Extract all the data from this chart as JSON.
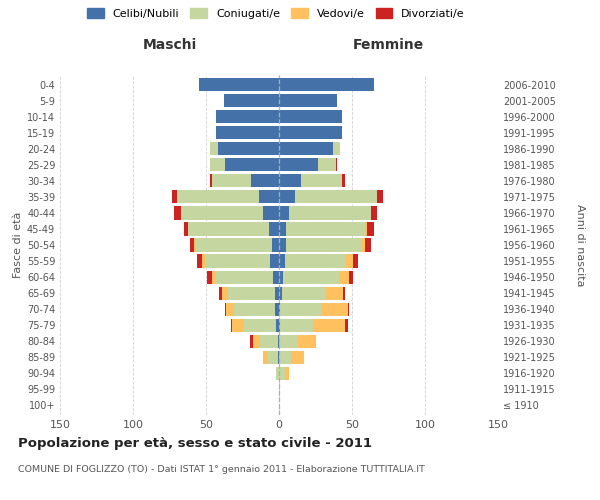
{
  "age_groups": [
    "100+",
    "95-99",
    "90-94",
    "85-89",
    "80-84",
    "75-79",
    "70-74",
    "65-69",
    "60-64",
    "55-59",
    "50-54",
    "45-49",
    "40-44",
    "35-39",
    "30-34",
    "25-29",
    "20-24",
    "15-19",
    "10-14",
    "5-9",
    "0-4"
  ],
  "birth_years": [
    "≤ 1910",
    "1911-1915",
    "1916-1920",
    "1921-1925",
    "1926-1930",
    "1931-1935",
    "1936-1940",
    "1941-1945",
    "1946-1950",
    "1951-1955",
    "1956-1960",
    "1961-1965",
    "1966-1970",
    "1971-1975",
    "1976-1980",
    "1981-1985",
    "1986-1990",
    "1991-1995",
    "1996-2000",
    "2001-2005",
    "2006-2010"
  ],
  "male": {
    "celibi": [
      0,
      0,
      0,
      1,
      1,
      2,
      3,
      3,
      4,
      6,
      5,
      7,
      11,
      14,
      19,
      37,
      42,
      43,
      43,
      38,
      55
    ],
    "coniugati": [
      0,
      0,
      2,
      7,
      12,
      22,
      28,
      32,
      40,
      45,
      52,
      55,
      56,
      56,
      27,
      10,
      5,
      0,
      0,
      0,
      0
    ],
    "vedovi": [
      0,
      0,
      0,
      3,
      5,
      8,
      5,
      4,
      2,
      2,
      1,
      0,
      0,
      0,
      0,
      0,
      0,
      0,
      0,
      0,
      0
    ],
    "divorziati": [
      0,
      0,
      0,
      0,
      2,
      1,
      1,
      2,
      3,
      3,
      3,
      3,
      5,
      3,
      1,
      0,
      0,
      0,
      0,
      0,
      0
    ]
  },
  "female": {
    "nubili": [
      0,
      0,
      0,
      0,
      0,
      1,
      1,
      2,
      3,
      4,
      5,
      5,
      7,
      11,
      15,
      27,
      37,
      43,
      43,
      40,
      65
    ],
    "coniugate": [
      0,
      1,
      4,
      8,
      13,
      22,
      28,
      30,
      38,
      42,
      52,
      54,
      56,
      56,
      28,
      12,
      5,
      0,
      0,
      0,
      0
    ],
    "vedove": [
      0,
      0,
      3,
      9,
      12,
      22,
      18,
      12,
      7,
      5,
      2,
      1,
      0,
      0,
      0,
      0,
      0,
      0,
      0,
      0,
      0
    ],
    "divorziate": [
      0,
      0,
      0,
      0,
      0,
      2,
      1,
      1,
      3,
      3,
      4,
      5,
      4,
      4,
      2,
      1,
      0,
      0,
      0,
      0,
      0
    ]
  },
  "colors": {
    "celibi": "#4472a8",
    "coniugati": "#c5d6a0",
    "vedovi": "#ffc060",
    "divorziati": "#cc2222"
  },
  "xlim": 150,
  "title": "Popolazione per età, sesso e stato civile - 2011",
  "subtitle": "COMUNE DI FOGLIZZO (TO) - Dati ISTAT 1° gennaio 2011 - Elaborazione TUTTITALIA.IT",
  "xlabel_left": "Maschi",
  "xlabel_right": "Femmine",
  "ylabel_left": "Fasce di età",
  "ylabel_right": "Anni di nascita",
  "bg_color": "#ffffff",
  "grid_color": "#cccccc"
}
